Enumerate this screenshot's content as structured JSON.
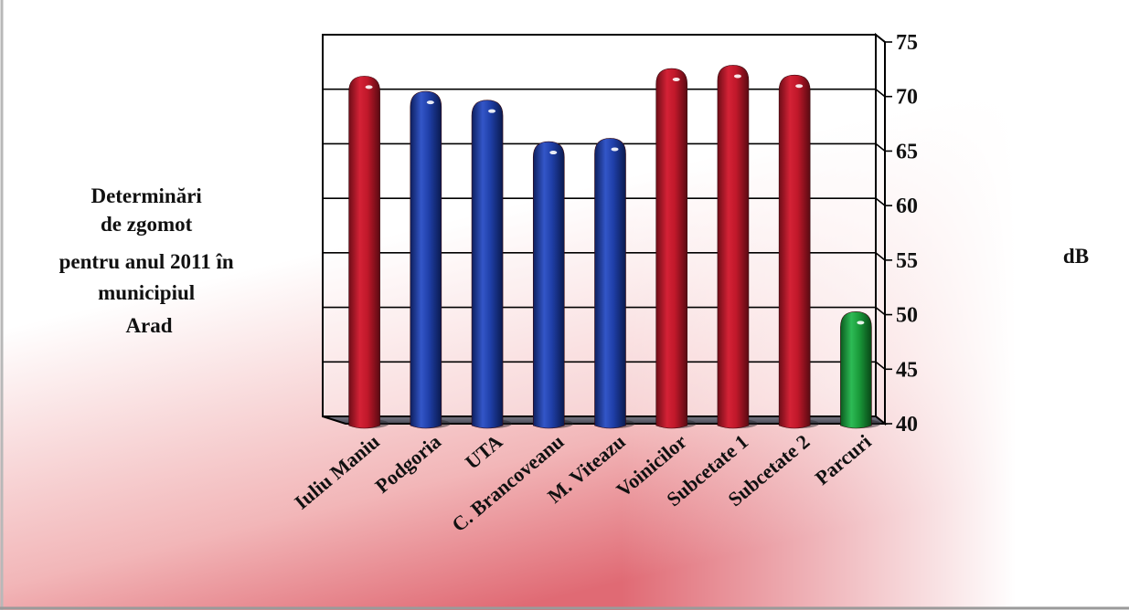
{
  "chart_data": {
    "type": "bar",
    "title_lines": [
      "Determinări",
      "de zgomot",
      "pentru anul 2011 în",
      "municipiul",
      "Arad"
    ],
    "ylabel": "dB",
    "ylim": [
      40,
      75
    ],
    "yticks": [
      "75",
      "70",
      "65",
      "60",
      "55",
      "50",
      "45",
      "40"
    ],
    "categories": [
      "Iuliu Maniu",
      "Podgoria",
      "UTA",
      "C. Brancoveanu",
      "M. Viteazu",
      "Voinicilor",
      "Subcetate 1",
      "Subcetate 2",
      "Parcuri"
    ],
    "values": [
      71.2,
      69.8,
      69.0,
      65.2,
      65.5,
      71.9,
      72.2,
      71.3,
      49.6
    ],
    "bar_colors": [
      "#c0182a",
      "#1f3fa8",
      "#1f3fa8",
      "#1f3fa8",
      "#1f3fa8",
      "#c0182a",
      "#c0182a",
      "#c0182a",
      "#1a9a3a"
    ],
    "grid": true,
    "legend": "none"
  }
}
